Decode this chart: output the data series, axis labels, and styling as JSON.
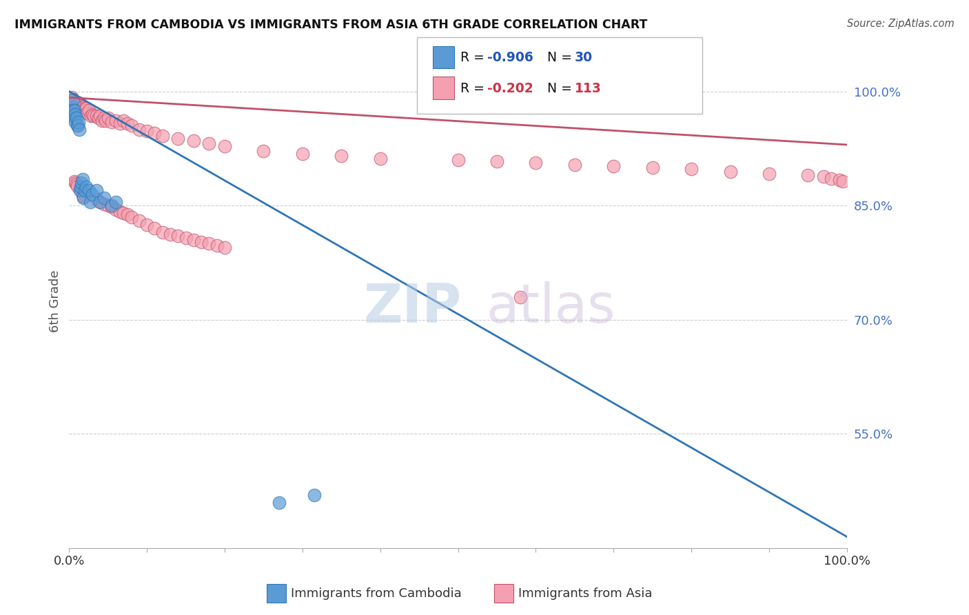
{
  "title": "IMMIGRANTS FROM CAMBODIA VS IMMIGRANTS FROM ASIA 6TH GRADE CORRELATION CHART",
  "source": "Source: ZipAtlas.com",
  "ylabel": "6th Grade",
  "ytick_labels": [
    "100.0%",
    "85.0%",
    "70.0%",
    "55.0%"
  ],
  "ytick_values": [
    1.0,
    0.85,
    0.7,
    0.55
  ],
  "legend_blue_r": "-0.906",
  "legend_blue_n": "30",
  "legend_pink_r": "-0.202",
  "legend_pink_n": "113",
  "blue_color": "#5b9bd5",
  "pink_color": "#f4a0b0",
  "blue_edge_color": "#2e75b6",
  "pink_edge_color": "#c0506a",
  "blue_line_color": "#2e75b6",
  "pink_line_color": "#c0506a",
  "blue_scatter_x": [
    0.004,
    0.005,
    0.005,
    0.006,
    0.007,
    0.007,
    0.008,
    0.008,
    0.009,
    0.01,
    0.011,
    0.012,
    0.013,
    0.014,
    0.015,
    0.016,
    0.017,
    0.018,
    0.02,
    0.022,
    0.025,
    0.027,
    0.03,
    0.035,
    0.04,
    0.045,
    0.055,
    0.06,
    0.27,
    0.315
  ],
  "blue_scatter_y": [
    0.98,
    0.99,
    0.975,
    0.97,
    0.965,
    0.975,
    0.96,
    0.97,
    0.965,
    0.955,
    0.955,
    0.96,
    0.95,
    0.87,
    0.875,
    0.88,
    0.885,
    0.86,
    0.87,
    0.875,
    0.87,
    0.855,
    0.865,
    0.87,
    0.855,
    0.86,
    0.85,
    0.855,
    0.46,
    0.47
  ],
  "pink_scatter_x": [
    0.003,
    0.003,
    0.004,
    0.004,
    0.004,
    0.005,
    0.005,
    0.005,
    0.006,
    0.006,
    0.007,
    0.007,
    0.007,
    0.008,
    0.008,
    0.009,
    0.009,
    0.01,
    0.01,
    0.011,
    0.011,
    0.012,
    0.012,
    0.013,
    0.014,
    0.015,
    0.015,
    0.016,
    0.017,
    0.018,
    0.019,
    0.02,
    0.021,
    0.022,
    0.023,
    0.025,
    0.028,
    0.03,
    0.032,
    0.035,
    0.038,
    0.04,
    0.042,
    0.045,
    0.047,
    0.05,
    0.055,
    0.06,
    0.065,
    0.07,
    0.075,
    0.08,
    0.09,
    0.1,
    0.11,
    0.12,
    0.14,
    0.16,
    0.18,
    0.2,
    0.25,
    0.3,
    0.35,
    0.4,
    0.5,
    0.55,
    0.6,
    0.65,
    0.7,
    0.75,
    0.8,
    0.85,
    0.9,
    0.95,
    0.97,
    0.98,
    0.99,
    0.995,
    0.003,
    0.004,
    0.005,
    0.006,
    0.007,
    0.008,
    0.009,
    0.01,
    0.015,
    0.016,
    0.017,
    0.018,
    0.035,
    0.04,
    0.045,
    0.05,
    0.055,
    0.06,
    0.065,
    0.07,
    0.075,
    0.08,
    0.09,
    0.1,
    0.11,
    0.12,
    0.13,
    0.14,
    0.15,
    0.16,
    0.17,
    0.18,
    0.19,
    0.2,
    0.58
  ],
  "pink_scatter_y": [
    0.99,
    0.985,
    0.985,
    0.98,
    0.975,
    0.985,
    0.98,
    0.975,
    0.985,
    0.978,
    0.985,
    0.98,
    0.975,
    0.985,
    0.978,
    0.985,
    0.978,
    0.985,
    0.98,
    0.985,
    0.978,
    0.982,
    0.978,
    0.985,
    0.98,
    0.982,
    0.978,
    0.98,
    0.978,
    0.98,
    0.975,
    0.978,
    0.975,
    0.978,
    0.972,
    0.975,
    0.968,
    0.97,
    0.968,
    0.968,
    0.965,
    0.968,
    0.962,
    0.965,
    0.962,
    0.965,
    0.96,
    0.962,
    0.958,
    0.962,
    0.958,
    0.955,
    0.95,
    0.948,
    0.945,
    0.942,
    0.938,
    0.935,
    0.932,
    0.928,
    0.922,
    0.918,
    0.915,
    0.912,
    0.91,
    0.908,
    0.906,
    0.904,
    0.902,
    0.9,
    0.898,
    0.895,
    0.892,
    0.89,
    0.888,
    0.886,
    0.884,
    0.882,
    0.992,
    0.988,
    0.986,
    0.984,
    0.882,
    0.88,
    0.878,
    0.876,
    0.872,
    0.87,
    0.865,
    0.862,
    0.858,
    0.855,
    0.852,
    0.85,
    0.848,
    0.845,
    0.842,
    0.84,
    0.838,
    0.835,
    0.83,
    0.825,
    0.82,
    0.815,
    0.812,
    0.81,
    0.808,
    0.805,
    0.802,
    0.8,
    0.798,
    0.795,
    0.73
  ],
  "blue_line_x": [
    0.0,
    1.0
  ],
  "blue_line_y": [
    1.0,
    0.415
  ],
  "pink_line_x": [
    0.0,
    1.0
  ],
  "pink_line_y": [
    0.992,
    0.93
  ],
  "xlim": [
    0.0,
    1.0
  ],
  "ylim": [
    0.4,
    1.05
  ]
}
